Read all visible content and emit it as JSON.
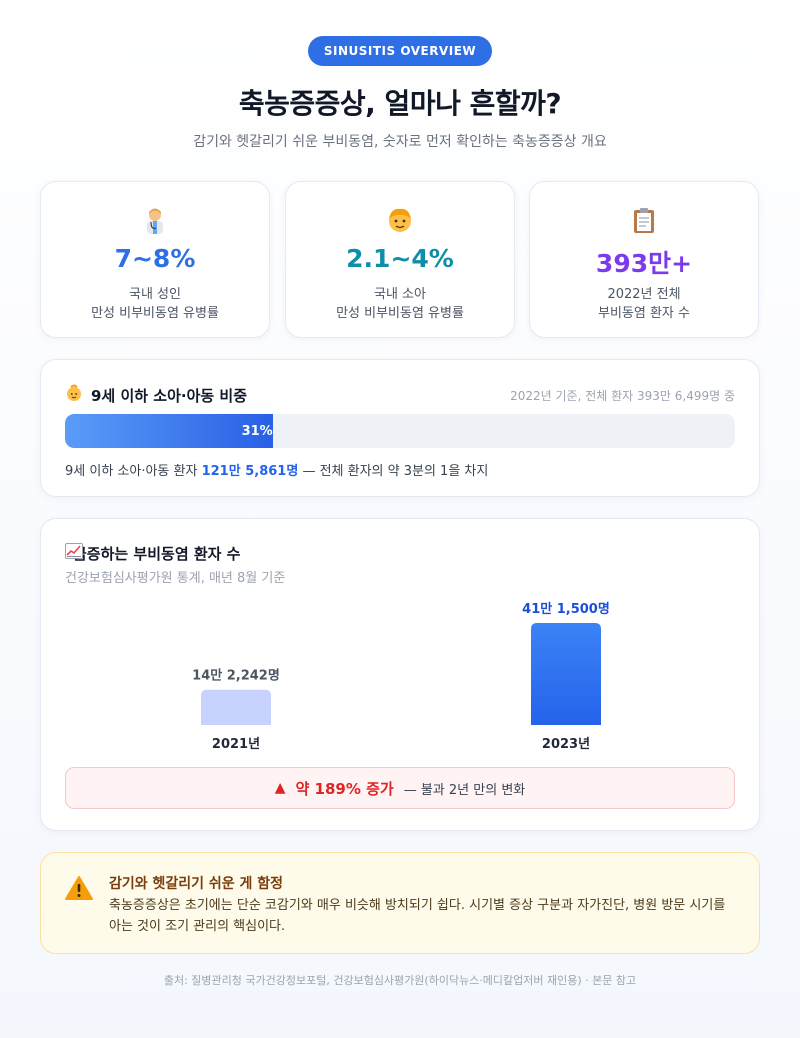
{
  "header": {
    "badge": "SINUSITIS OVERVIEW",
    "title": "축농증증상, 얼마나 흔할까?",
    "subtitle": "감기와 헷갈리기 쉬운 부비동염, 숫자로 먼저 확인하는 축농증증상 개요"
  },
  "stats": [
    {
      "icon": "doctor-icon",
      "value": "7~8%",
      "label1": "국내 성인",
      "label2": "만성 비부비동염 유병률",
      "color": "#2f6fe6"
    },
    {
      "icon": "child-icon",
      "value": "2.1~4%",
      "label1": "국내 소아",
      "label2": "만성 비부비동염 유병률",
      "color": "#0e8ea8"
    },
    {
      "icon": "clipboard-icon",
      "value": "393만+",
      "label1": "2022년 전체",
      "label2": "부비동염 환자 수",
      "color": "#7c3aed"
    }
  ],
  "proportion": {
    "icon": "baby-icon",
    "title": "9세 이하 소아·아동 비중",
    "note": "2022년 기준, 전체 환자 393만 6,499명 중",
    "percent": 31,
    "percent_label": "31%",
    "desc_prefix": "9세 이하 소아·아동 환자",
    "desc_highlight": "121만 5,861명",
    "desc_suffix": "— 전체 환자의 약 3분의 1을 차지"
  },
  "chart_section": {
    "icon": "trend-chart-icon",
    "title": "급증하는 부비동염 환자 수",
    "source": "건강보험심사평가원 통계, 매년 8월 기준",
    "increase_label": "약 189% 증가",
    "increase_note": "— 불과 2년 만의 변화"
  },
  "chart_data": {
    "type": "bar",
    "categories": [
      "2021년",
      "2023년"
    ],
    "values": [
      142242,
      411500
    ],
    "value_labels": [
      "14만 2,242명",
      "41만 1,500명"
    ],
    "colors": [
      "#c7d2fe",
      "#2563eb"
    ],
    "label_colors": [
      "#4b5563",
      "#1d4ed8"
    ],
    "ylim": [
      0,
      411500
    ]
  },
  "warning": {
    "icon": "warning-icon",
    "title": "감기와 헷갈리기 쉬운 게 함정",
    "body": "축농증증상은 초기에는 단순 코감기와 매우 비슷해 방치되기 쉽다. 시기별 증상 구분과 자가진단, 병원 방문 시기를 아는 것이 조기 관리의 핵심이다."
  },
  "footer": "출처: 질병관리청 국가건강정보포털, 건강보험심사평가원(하이닥뉴스·메디칼업저버 재인용) · 본문 참고"
}
